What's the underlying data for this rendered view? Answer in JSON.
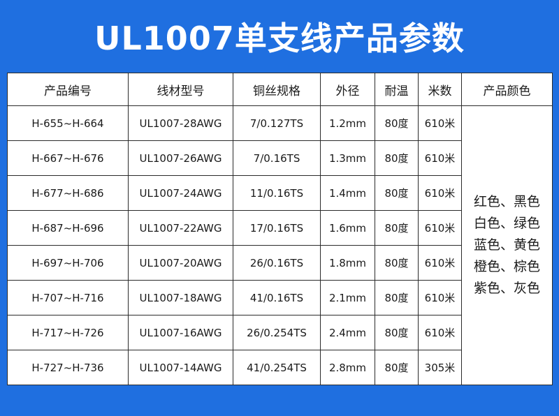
{
  "title": "UL1007单支线产品参数",
  "table": {
    "headers": [
      "产品编号",
      "线材型号",
      "铜丝规格",
      "外径",
      "耐温",
      "米数",
      "产品颜色"
    ],
    "rows": [
      [
        "H-655~H-664",
        "UL1007-28AWG",
        "7/0.127TS",
        "1.2mm",
        "80度",
        "610米"
      ],
      [
        "H-667~H-676",
        "UL1007-26AWG",
        "7/0.16TS",
        "1.3mm",
        "80度",
        "610米"
      ],
      [
        "H-677~H-686",
        "UL1007-24AWG",
        "11/0.16TS",
        "1.4mm",
        "80度",
        "610米"
      ],
      [
        "H-687~H-696",
        "UL1007-22AWG",
        "17/0.16TS",
        "1.6mm",
        "80度",
        "610米"
      ],
      [
        "H-697~H-706",
        "UL1007-20AWG",
        "26/0.16TS",
        "1.8mm",
        "80度",
        "610米"
      ],
      [
        "H-707~H-716",
        "UL1007-18AWG",
        "41/0.16TS",
        "2.1mm",
        "80度",
        "610米"
      ],
      [
        "H-717~H-726",
        "UL1007-16AWG",
        "26/0.254TS",
        "2.4mm",
        "80度",
        "610米"
      ],
      [
        "H-727~H-736",
        "UL1007-14AWG",
        "41/0.254TS",
        "2.8mm",
        "80度",
        "305米"
      ]
    ],
    "colors": [
      "红色、黑色",
      "白色、绿色",
      "蓝色、黄色",
      "橙色、棕色",
      "紫色、灰色"
    ]
  },
  "theme": {
    "background": "#1f6fe0",
    "title_color": "#ffffff",
    "border": "#2a2a2a"
  }
}
